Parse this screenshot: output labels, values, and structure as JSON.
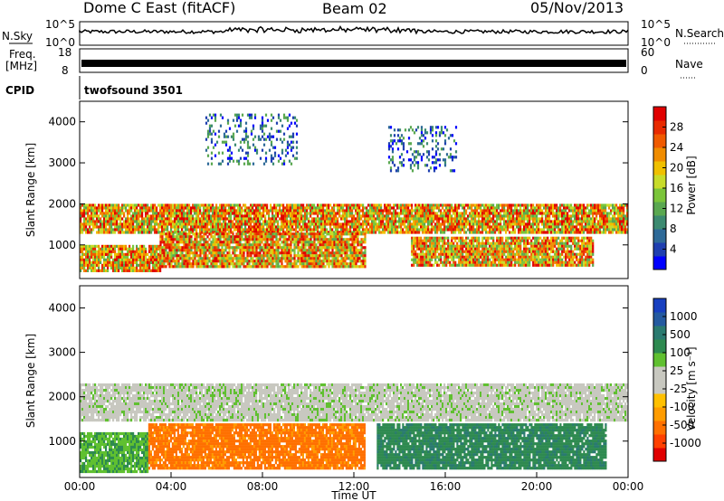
{
  "header": {
    "station": "Dome C East (fitACF)",
    "beam": "Beam 02",
    "date": "05/Nov/2013"
  },
  "summary_panels": {
    "nsky_label": "N.Sky",
    "nsearch_label": "N.Search",
    "nsky_ticks": [
      "10^5",
      "10^0"
    ],
    "nsearch_ticks": [
      "10^5",
      "10^0"
    ],
    "freq_label_line1": "Freq.",
    "freq_label_line2": "[MHz]",
    "freq_ticks": [
      "18",
      "8"
    ],
    "nave_label": "Nave",
    "nave_ticks": [
      "60",
      "0"
    ],
    "cpid_label": "CPID",
    "cpid_value": "twofsound 3501"
  },
  "chart_data": [
    {
      "type": "heatmap",
      "name": "power",
      "xlabel": "",
      "ylabel": "Slant Range [km]",
      "x_range_hours": [
        0,
        24
      ],
      "ylim": [
        180,
        4500
      ],
      "yticks": [
        "1000",
        "2000",
        "3000",
        "4000"
      ],
      "colorbar": {
        "label": "Power [dB]",
        "ticks": [
          "28",
          "24",
          "20",
          "16",
          "12",
          "8",
          "4"
        ],
        "colors": [
          "#0000ff",
          "#1f3fb0",
          "#2e6a98",
          "#3c8a70",
          "#5aa850",
          "#7bc53a",
          "#c8dc2a",
          "#f0c000",
          "#f08c00",
          "#f05a00",
          "#e82a00",
          "#e00000"
        ]
      },
      "bands": [
        {
          "from_h": 0.0,
          "to_h": 24.0,
          "range_km": [
            1300,
            2000
          ],
          "level": "high"
        },
        {
          "from_h": 0.0,
          "to_h": 3.5,
          "range_km": [
            400,
            1000
          ],
          "level": "high"
        },
        {
          "from_h": 3.5,
          "to_h": 12.5,
          "range_km": [
            500,
            1300
          ],
          "level": "high"
        },
        {
          "from_h": 14.5,
          "to_h": 22.5,
          "range_km": [
            500,
            1200
          ],
          "level": "high"
        },
        {
          "from_h": 5.5,
          "to_h": 9.5,
          "range_km": [
            3000,
            4200
          ],
          "level": "low"
        },
        {
          "from_h": 13.5,
          "to_h": 16.5,
          "range_km": [
            2800,
            3900
          ],
          "level": "low"
        }
      ]
    },
    {
      "type": "heatmap",
      "name": "velocity",
      "xlabel": "Time UT",
      "ylabel": "Slant Range [km]",
      "x_range_hours": [
        0,
        24
      ],
      "ylim": [
        180,
        4500
      ],
      "yticks": [
        "1000",
        "2000",
        "3000",
        "4000"
      ],
      "xticks": [
        "00:00",
        "04:00",
        "08:00",
        "12:00",
        "16:00",
        "20:00",
        "00:00"
      ],
      "colorbar": {
        "label": "Velocity [m s⁻¹]",
        "ticks": [
          "1000",
          "500",
          "100",
          "25",
          "-25",
          "-100",
          "-500",
          "-1000"
        ],
        "colors": [
          "#e00000",
          "#ff4000",
          "#ff7000",
          "#ff9c00",
          "#ffc000",
          "#c8c8c0",
          "#c8c8c0",
          "#60c030",
          "#2e8a50",
          "#2a7a70",
          "#245aa0",
          "#1840c0"
        ]
      },
      "bands": [
        {
          "from_h": 0.0,
          "to_h": 24.0,
          "range_km": [
            1500,
            2300
          ],
          "level": "grey"
        },
        {
          "from_h": 0.0,
          "to_h": 3.0,
          "range_km": [
            300,
            1200
          ],
          "level": "green"
        },
        {
          "from_h": 3.0,
          "to_h": 12.5,
          "range_km": [
            400,
            1400
          ],
          "level": "orange"
        },
        {
          "from_h": 13.0,
          "to_h": 23.0,
          "range_km": [
            400,
            1400
          ],
          "level": "teal"
        }
      ]
    }
  ]
}
